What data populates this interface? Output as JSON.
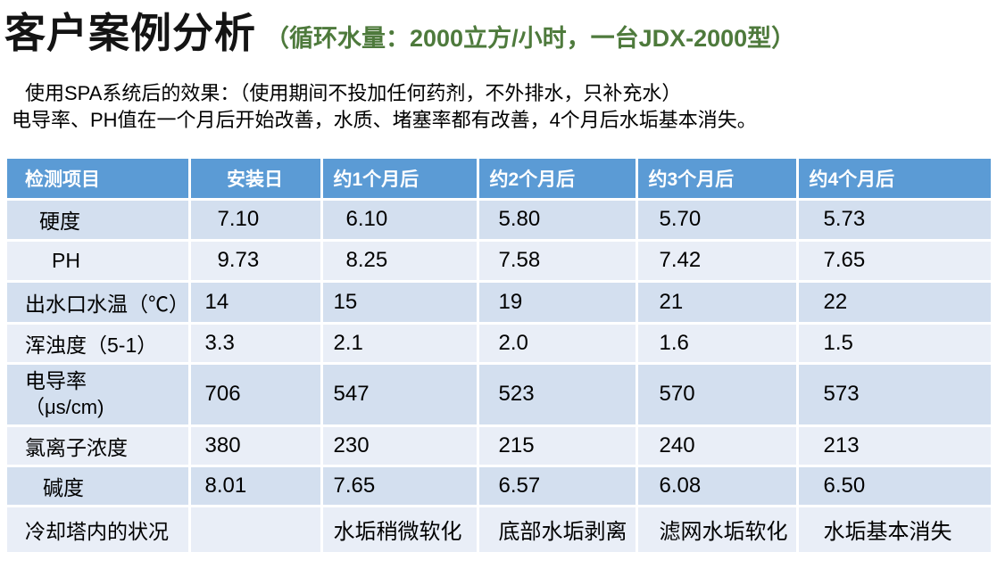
{
  "header": {
    "title": "客户案例分析",
    "subtitle": "（循环水量：2000立方/小时，一台JDX-2000型）"
  },
  "intro": {
    "line1": "使用SPA系统后的效果：（使用期间不投加任何药剂，不外排水，只补充水）",
    "line2": "电导率、PH值在一个月后开始改善，水质、堵塞率都有改善，4个月后水垢基本消失。"
  },
  "table": {
    "columns": [
      "检测项目",
      "安装日",
      "约1个月后",
      "约2个月后",
      "约3个月后",
      "约4个月后"
    ],
    "rows": [
      {
        "label": "硬度",
        "label_indent": 16,
        "value_indent": 14,
        "values": [
          "7.10",
          "6.10",
          "5.80",
          "5.70",
          "5.73"
        ]
      },
      {
        "label": "PH",
        "label_indent": 30,
        "value_indent": 14,
        "values": [
          "9.73",
          "8.25",
          "7.58",
          "7.42",
          "7.65"
        ]
      },
      {
        "label": "出水口水温（℃）",
        "label_indent": 0,
        "value_indent": 0,
        "values": [
          "14",
          "15",
          "19",
          "21",
          "22"
        ]
      },
      {
        "label": "浑浊度（5-1）",
        "label_indent": 0,
        "value_indent": 0,
        "values": [
          "3.3",
          "2.1",
          "2.0",
          "1.6",
          "1.5"
        ]
      },
      {
        "label": "电导率",
        "label2": "（μs/cm)",
        "label_indent": 0,
        "value_indent": 0,
        "values": [
          "706",
          "547",
          "523",
          "570",
          "573"
        ]
      },
      {
        "label": "氯离子浓度",
        "label_indent": 0,
        "value_indent": 0,
        "values": [
          "380",
          "230",
          "215",
          "240",
          "213"
        ]
      },
      {
        "label": "碱度",
        "label_indent": 20,
        "value_indent": 0,
        "values": [
          "8.01",
          "7.65",
          "6.57",
          "6.08",
          "6.50"
        ]
      },
      {
        "label": "冷却塔内的状况",
        "label_indent": 0,
        "value_indent": 0,
        "values": [
          "",
          "水垢稍微软化",
          "底部水垢剥离",
          "滤网水垢软化",
          "水垢基本消失"
        ]
      }
    ],
    "colors": {
      "header_bg": "#5B9BD5",
      "header_text": "#FFFFFF",
      "band_dark": "#D3DFEF",
      "band_light": "#E9EEF7",
      "accent_green": "#4E7A3C"
    }
  }
}
